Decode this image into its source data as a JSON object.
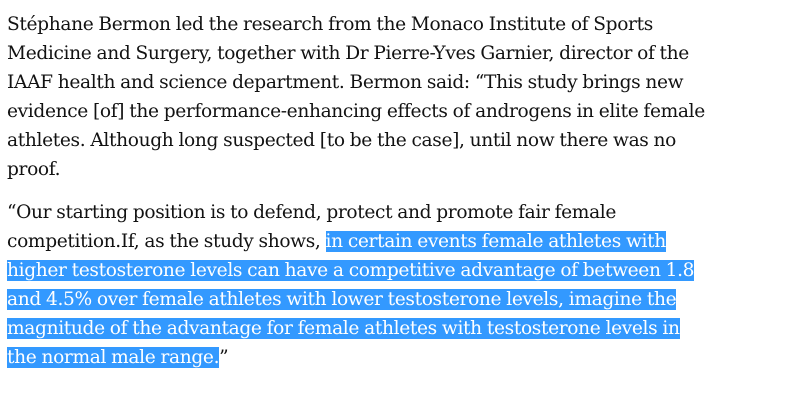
{
  "article": {
    "paragraph1": {
      "lines": [
        "Stéphane Bermon led the research from the Monaco Institute of Sports",
        "Medicine and Surgery, together with Dr Pierre-Yves Garnier, director of the",
        "IAAF health and science department. Bermon said: “This study brings new",
        "evidence [of] the performance-enhancing effects of androgens in elite female",
        "athletes. Although long suspected [to be the case], until now there was no",
        "proof."
      ]
    },
    "paragraph2": {
      "line1": "“Our starting position is to defend, protect and promote fair female",
      "line2_plain": "competition.If, as the study shows, ",
      "line2_selected": "in certain events female athletes with",
      "selected_lines": [
        "higher testosterone levels can have a competitive advantage of between 1.8",
        "and 4.5% over female athletes with lower testosterone levels, imagine the",
        "magnitude of the advantage for female athletes with testosterone levels in"
      ],
      "last_selected": "the normal male range.",
      "closing_quote": "”"
    },
    "selection_color": "#3399ff",
    "text_color": "#121212"
  }
}
